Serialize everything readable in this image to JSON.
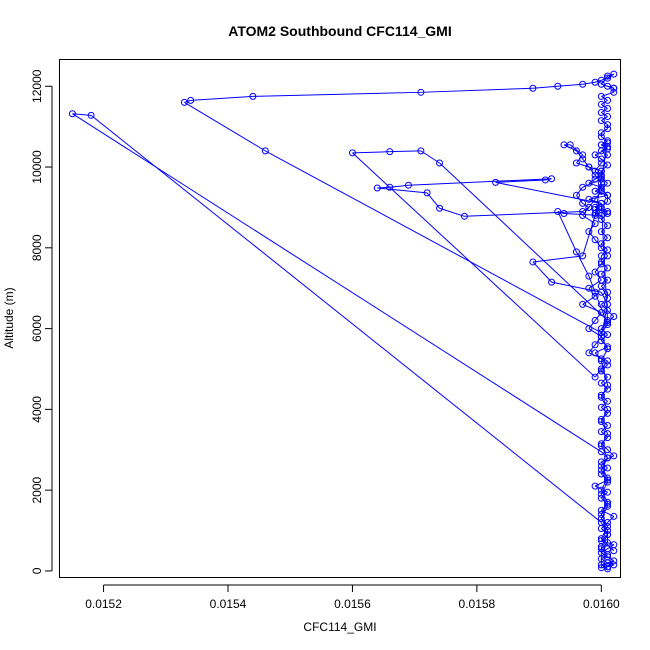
{
  "chart_data": {
    "type": "line",
    "title": "ATOM2 Southbound CFC114_GMI",
    "xlabel": "CFC114_GMI",
    "ylabel": "Altitude (m)",
    "xlim": [
      0.01513,
      0.01603
    ],
    "ylim": [
      -150,
      12650
    ],
    "x_ticks": [
      0.0152,
      0.0154,
      0.0156,
      0.0158,
      0.016
    ],
    "x_tick_labels": [
      "0.0152",
      "0.0154",
      "0.0156",
      "0.0158",
      "0.0160"
    ],
    "y_ticks": [
      0,
      2000,
      4000,
      6000,
      8000,
      10000,
      12000
    ],
    "y_tick_labels": [
      "0",
      "2000",
      "4000",
      "6000",
      "8000",
      "10000",
      "12000"
    ],
    "series": [
      {
        "color": "#0000ff",
        "marker": "open-circle",
        "x": [
          0.01601,
          0.016,
          0.01602,
          0.01601,
          0.016,
          0.01601,
          0.01602,
          0.016,
          0.01601,
          0.016,
          0.01601,
          0.01602,
          0.016,
          0.01601,
          0.016,
          0.01601,
          0.01599,
          0.01601,
          0.016,
          0.01601,
          0.016,
          0.01602,
          0.01601,
          0.016,
          0.01601,
          0.016,
          0.01601,
          0.016,
          0.01601,
          0.016,
          0.01601,
          0.016,
          0.01601,
          0.016,
          0.01601,
          0.016,
          0.01601,
          0.016,
          0.01599,
          0.01601,
          0.016,
          0.01601,
          0.016,
          0.01601,
          0.01602,
          0.01601,
          0.016,
          0.01601,
          0.01601,
          0.016,
          0.01601,
          0.016,
          0.01601,
          0.016,
          0.016,
          0.01601,
          0.016,
          0.01601,
          0.016,
          0.01601,
          0.016,
          0.01601,
          0.016,
          0.01601,
          0.01601,
          0.016,
          0.01601,
          0.016,
          0.016,
          0.01601,
          0.016,
          0.01599,
          0.01601,
          0.016,
          0.01601,
          0.016,
          0.016,
          0.01601,
          0.01601,
          0.016,
          0.01601,
          0.016,
          0.01601,
          0.016,
          0.01601,
          0.016,
          0.01602,
          0.01602,
          0.01601,
          0.01602,
          0.016,
          0.01601,
          0.01602,
          0.01601,
          0.016,
          0.01599,
          0.01597,
          0.01593,
          0.01589,
          0.01571,
          0.01544,
          0.01534,
          0.01533,
          0.01546,
          0.016,
          0.01601,
          0.01599,
          0.01598,
          0.01596,
          0.01593,
          0.01594,
          0.016,
          0.01599,
          0.01601,
          0.01599,
          0.016,
          0.01599,
          0.016,
          0.01598,
          0.01601,
          0.01599,
          0.016,
          0.01598,
          0.01599,
          0.016,
          0.016,
          0.01598,
          0.01596,
          0.01597,
          0.01595,
          0.01594,
          0.01596,
          0.01597,
          0.01598,
          0.01599,
          0.016,
          0.016,
          0.01599,
          0.01598,
          0.01597,
          0.01599,
          0.01598,
          0.01599,
          0.016,
          0.01601,
          0.016,
          0.01599,
          0.016,
          0.01598,
          0.01599,
          0.01597,
          0.016,
          0.01599,
          0.01598,
          0.016,
          0.01599,
          0.01598,
          0.01601,
          0.016,
          0.01599,
          0.0156,
          0.01566,
          0.01571,
          0.01574,
          0.01601,
          0.016,
          0.01583,
          0.01591,
          0.01592,
          0.01569,
          0.01566,
          0.01564,
          0.01572,
          0.01574,
          0.01578,
          0.01597,
          0.01598,
          0.01597,
          0.01596,
          0.01597,
          0.016,
          0.01599,
          0.016,
          0.01601,
          0.016,
          0.01601,
          0.016,
          0.01601,
          0.01599,
          0.01597,
          0.01589,
          0.01592,
          0.016,
          0.01601,
          0.016,
          0.01601,
          0.016,
          0.01601,
          0.016,
          0.01601,
          0.016,
          0.01601,
          0.016,
          0.01601,
          0.016,
          0.01601,
          0.016,
          0.01601,
          0.016,
          0.01601,
          0.01601,
          0.016,
          0.01601,
          0.016,
          0.01601,
          0.01602,
          0.01601,
          0.016,
          0.016,
          0.01601,
          0.016,
          0.01518,
          0.01515,
          0.016,
          0.01601,
          0.016,
          0.01601,
          0.016,
          0.01601,
          0.016,
          0.01601,
          0.016,
          0.01602
        ],
        "y": [
          50,
          150,
          250,
          350,
          450,
          550,
          650,
          750,
          900,
          1050,
          1200,
          1350,
          1500,
          1650,
          1800,
          1950,
          2100,
          2250,
          2400,
          2550,
          2700,
          2850,
          3000,
          3150,
          3300,
          3450,
          3600,
          3750,
          3900,
          4050,
          4200,
          4350,
          4500,
          4650,
          4800,
          4950,
          5100,
          5250,
          5400,
          5550,
          5700,
          5850,
          6000,
          6150,
          6300,
          6450,
          6600,
          6750,
          6900,
          7050,
          7200,
          7350,
          7500,
          7650,
          7800,
          7950,
          8100,
          8250,
          8400,
          8550,
          8700,
          8850,
          9000,
          9150,
          9300,
          9450,
          9600,
          9750,
          9900,
          10050,
          10200,
          10300,
          10450,
          10550,
          10650,
          10750,
          10850,
          10950,
          11050,
          11150,
          11250,
          11350,
          11450,
          11550,
          11650,
          11750,
          11850,
          11950,
          12000,
          11950,
          12050,
          12250,
          12300,
          12200,
          12150,
          12100,
          12050,
          12000,
          11950,
          11850,
          11750,
          11650,
          11600,
          10400,
          5900,
          6100,
          6900,
          7300,
          7900,
          8900,
          8850,
          8800,
          8850,
          8900,
          8950,
          8950,
          9000,
          9100,
          9200,
          9300,
          9400,
          9500,
          9600,
          9700,
          9800,
          9900,
          10000,
          10100,
          10300,
          10550,
          10550,
          10400,
          10200,
          10000,
          9800,
          9600,
          9400,
          9200,
          9000,
          8800,
          8600,
          8400,
          8200,
          8000,
          7800,
          7600,
          7400,
          7200,
          7000,
          6800,
          6600,
          6400,
          6200,
          6000,
          5800,
          5600,
          5400,
          5200,
          5000,
          4800,
          10350,
          10380,
          10400,
          10100,
          6200,
          9100,
          9620,
          9680,
          9710,
          9550,
          9500,
          9480,
          9360,
          8980,
          8780,
          8900,
          9000,
          9100,
          9300,
          9500,
          9700,
          9900,
          10100,
          10300,
          10400,
          10500,
          10550,
          10600,
          8800,
          7800,
          7650,
          7150,
          6900,
          6600,
          5800,
          5500,
          5200,
          4600,
          4300,
          4000,
          3700,
          3400,
          3100,
          2800,
          2500,
          2200,
          1900,
          1600,
          1300,
          1000,
          700,
          550,
          400,
          300,
          200,
          150,
          100,
          80,
          600,
          900,
          1200,
          11280,
          11320,
          2950,
          2800,
          2600,
          2300,
          2000,
          1700,
          1400,
          1100,
          800,
          500
        ]
      }
    ]
  }
}
